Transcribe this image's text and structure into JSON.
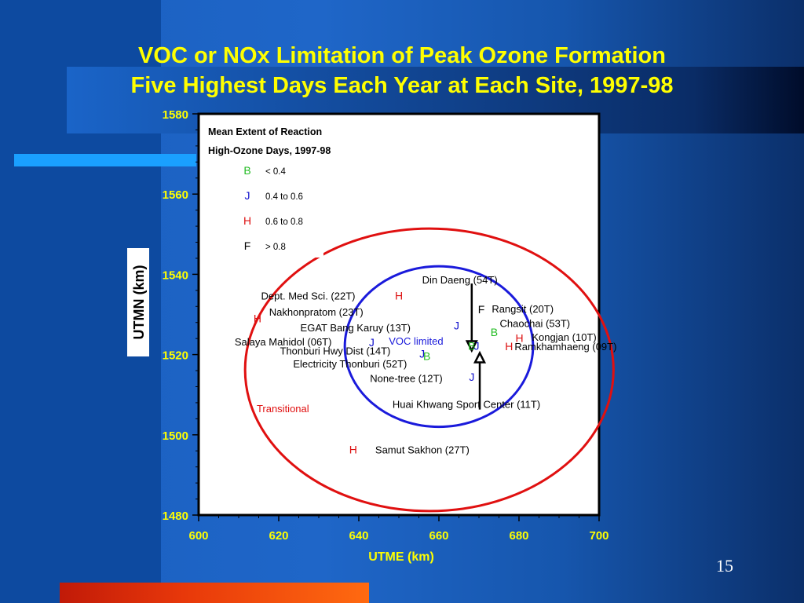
{
  "slide": {
    "title_line1": "VOC or NOx Limitation of Peak Ozone Formation",
    "title_line2": "Five Highest Days Each Year at Each Site, 1997-98",
    "page_number": "15"
  },
  "colors": {
    "title": "#ffff00",
    "B": "#22bb22",
    "J": "#1010cc",
    "H": "#dd1111",
    "F": "#000000",
    "voc_circle": "#1a1adb",
    "transitional_circle": "#e01010"
  },
  "chart_data": {
    "type": "scatter",
    "xlabel": "UTME (km)",
    "ylabel": "UTMN (km)",
    "xlim": [
      600,
      700
    ],
    "ylim": [
      1480,
      1580
    ],
    "xticks": [
      600,
      620,
      640,
      660,
      680,
      700
    ],
    "yticks": [
      1480,
      1500,
      1520,
      1540,
      1560,
      1580
    ],
    "legend": {
      "title_line1": "Mean Extent of Reaction",
      "title_line2": "High-Ozone Days, 1997-98",
      "entries": [
        {
          "symbol": "B",
          "label": "< 0.4"
        },
        {
          "symbol": "J",
          "label": "0.4 to 0.6"
        },
        {
          "symbol": "H",
          "label": "0.6 to 0.8"
        },
        {
          "symbol": "F",
          "label": "> 0.8"
        }
      ]
    },
    "points": [
      {
        "symbol": "H",
        "x": 650,
        "y": 1534.7
      },
      {
        "symbol": "H",
        "x": 614.7,
        "y": 1529
      },
      {
        "symbol": "F",
        "x": 670.6,
        "y": 1531.3
      },
      {
        "symbol": "J",
        "x": 664.4,
        "y": 1527.3
      },
      {
        "symbol": "B",
        "x": 673.8,
        "y": 1525.6
      },
      {
        "symbol": "H",
        "x": 680.1,
        "y": 1524.1
      },
      {
        "symbol": "J",
        "x": 643.2,
        "y": 1523.1
      },
      {
        "symbol": "B",
        "x": 668.2,
        "y": 1522.2
      },
      {
        "symbol": "J",
        "x": 669.4,
        "y": 1522.2
      },
      {
        "symbol": "H",
        "x": 677.5,
        "y": 1522.1
      },
      {
        "symbol": "J",
        "x": 655.8,
        "y": 1520.2
      },
      {
        "symbol": "B",
        "x": 657,
        "y": 1519.6
      },
      {
        "symbol": "J",
        "x": 668.2,
        "y": 1514.4
      },
      {
        "symbol": "H",
        "x": 638.6,
        "y": 1496.3
      }
    ],
    "site_labels": [
      {
        "text": "Din Daeng (54T)",
        "x": 655.8,
        "y": 1538.7
      },
      {
        "text": "Dept. Med Sci. (22T)",
        "x": 615.6,
        "y": 1534.7
      },
      {
        "text": "Rangsit (20T)",
        "x": 673.2,
        "y": 1531.5
      },
      {
        "text": "Nakhonpratom (23T)",
        "x": 617.6,
        "y": 1530.7
      },
      {
        "text": "Chaochai (53T)",
        "x": 675.2,
        "y": 1527.8
      },
      {
        "text": "EGAT Bang Karuy (13T)",
        "x": 625.4,
        "y": 1526.8
      },
      {
        "text": "Kongjan (10T)",
        "x": 683.2,
        "y": 1524.4
      },
      {
        "text": "Salaya Mahidol (06T)",
        "x": 609,
        "y": 1523.2
      },
      {
        "text": "Ramkhamhaeng (09T)",
        "x": 678.9,
        "y": 1522.1
      },
      {
        "text": "Thonburi Hwy Dist (14T)",
        "x": 620.3,
        "y": 1521
      },
      {
        "text": "Electricity Thonburi (52T)",
        "x": 623.6,
        "y": 1517.8
      },
      {
        "text": "None-tree (12T)",
        "x": 642.8,
        "y": 1514.1
      },
      {
        "text": "Huai Khwang Sport Center (11T)",
        "x": 648.4,
        "y": 1507.7
      },
      {
        "text": "Samut Sakhon (27T)",
        "x": 644.1,
        "y": 1496.3
      }
    ],
    "regions": [
      {
        "name": "VOC limited",
        "color": "#1a1adb",
        "center": [
          660,
          1522
        ],
        "radius_x": 23.5,
        "radius_y": 20,
        "label_x": 647.5,
        "label_y": 1523.4
      },
      {
        "name": "Transitional",
        "color": "#e01010",
        "center": [
          657.6,
          1516.2
        ],
        "radius_x": 46,
        "radius_y": 35.2,
        "label_x": 614.5,
        "label_y": 1506.6
      }
    ],
    "arrows": [
      {
        "direction": "down",
        "x": 668.2,
        "from_y": 1537.7,
        "to_y": 1521
      },
      {
        "direction": "up",
        "x": 670.2,
        "from_y": 1506.3,
        "to_y": 1520.4
      }
    ]
  }
}
